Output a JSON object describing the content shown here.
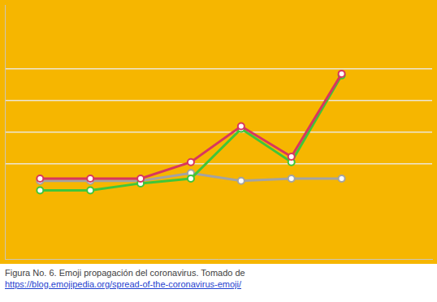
{
  "chart_data": {
    "type": "line",
    "x": [
      0,
      1,
      2,
      3,
      4,
      5,
      6
    ],
    "xlim": [
      -0.7,
      7.8
    ],
    "xticks": [
      0,
      1,
      2,
      3,
      4,
      5,
      6
    ],
    "ylim": [
      -2,
      6
    ],
    "yticks": [
      1,
      2,
      3,
      4
    ],
    "grid": "y",
    "tick_labels": false,
    "series": [
      {
        "color": "#d8365f",
        "marker": "circle",
        "values": [
          0.53,
          0.53,
          0.53,
          1.05,
          2.18,
          1.22,
          3.83
        ]
      },
      {
        "color": "#3fc63a",
        "marker": "circle",
        "values": [
          0.16,
          0.16,
          0.38,
          0.53,
          2.1,
          1.05,
          3.78
        ]
      },
      {
        "color": "#a3a3a3",
        "marker": "circle",
        "values": [
          0.46,
          0.46,
          0.46,
          0.7,
          0.46,
          0.53,
          0.53
        ]
      }
    ]
  },
  "caption": {
    "text": "Figura No. 6. Emoji propagación del coronavirus. Tomado de",
    "link": "https://blog.emojipedia.org/spread-of-the-coronavirus-emoji/"
  }
}
